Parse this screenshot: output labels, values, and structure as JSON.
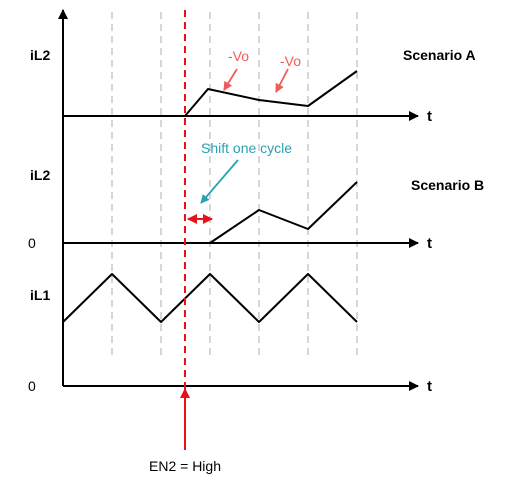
{
  "colors": {
    "axis": "#000000",
    "gridline": "#c8c8c8",
    "trace": "#000000",
    "enable_line": "#e8101a",
    "vo_annotation": "#f05a5a",
    "shift_annotation": "#2aa1b3"
  },
  "labels": {
    "il2_a": "iL2",
    "il2_b": "iL2",
    "il1": "iL1",
    "zero_b": "0",
    "zero_bottom": "0",
    "t_a": "t",
    "t_b": "t",
    "t_bottom": "t",
    "scenario_a": "Scenario A",
    "scenario_b": "Scenario B",
    "vo_1": "-Vo",
    "vo_2": "-Vo",
    "shift": "Shift one cycle",
    "enable": "EN2 = High"
  }
}
